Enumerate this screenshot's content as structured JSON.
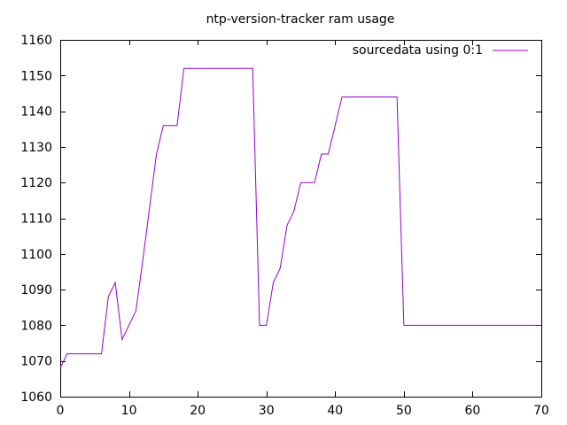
{
  "chart_data": {
    "type": "line",
    "title": "ntp-version-tracker ram usage",
    "xlabel": "",
    "ylabel": "",
    "xlim": [
      0,
      70
    ],
    "ylim": [
      1060,
      1160
    ],
    "x_ticks": [
      0,
      10,
      20,
      30,
      40,
      50,
      60,
      70
    ],
    "y_ticks": [
      1060,
      1070,
      1080,
      1090,
      1100,
      1110,
      1120,
      1130,
      1140,
      1150,
      1160
    ],
    "grid": false,
    "legend_position": "top-right",
    "series": [
      {
        "name": "sourcedata using 0:1",
        "color": "#9400d3",
        "points": [
          [
            0,
            1068
          ],
          [
            1,
            1072
          ],
          [
            2,
            1072
          ],
          [
            3,
            1072
          ],
          [
            4,
            1072
          ],
          [
            5,
            1072
          ],
          [
            6,
            1072
          ],
          [
            7,
            1088
          ],
          [
            8,
            1092
          ],
          [
            9,
            1076
          ],
          [
            10,
            1080
          ],
          [
            11,
            1084
          ],
          [
            12,
            1098
          ],
          [
            13,
            1113
          ],
          [
            14,
            1128
          ],
          [
            15,
            1136
          ],
          [
            16,
            1136
          ],
          [
            17,
            1136
          ],
          [
            18,
            1152
          ],
          [
            19,
            1152
          ],
          [
            20,
            1152
          ],
          [
            21,
            1152
          ],
          [
            22,
            1152
          ],
          [
            23,
            1152
          ],
          [
            24,
            1152
          ],
          [
            25,
            1152
          ],
          [
            26,
            1152
          ],
          [
            27,
            1152
          ],
          [
            28,
            1152
          ],
          [
            29,
            1080
          ],
          [
            30,
            1080
          ],
          [
            31,
            1092
          ],
          [
            32,
            1096
          ],
          [
            33,
            1108
          ],
          [
            34,
            1112
          ],
          [
            35,
            1120
          ],
          [
            36,
            1120
          ],
          [
            37,
            1120
          ],
          [
            38,
            1128
          ],
          [
            39,
            1128
          ],
          [
            40,
            1136
          ],
          [
            41,
            1144
          ],
          [
            42,
            1144
          ],
          [
            43,
            1144
          ],
          [
            44,
            1144
          ],
          [
            45,
            1144
          ],
          [
            46,
            1144
          ],
          [
            47,
            1144
          ],
          [
            48,
            1144
          ],
          [
            49,
            1144
          ],
          [
            50,
            1080
          ],
          [
            51,
            1080
          ],
          [
            52,
            1080
          ],
          [
            53,
            1080
          ],
          [
            54,
            1080
          ],
          [
            55,
            1080
          ],
          [
            56,
            1080
          ],
          [
            57,
            1080
          ],
          [
            58,
            1080
          ],
          [
            59,
            1080
          ],
          [
            60,
            1080
          ],
          [
            61,
            1080
          ],
          [
            62,
            1080
          ],
          [
            63,
            1080
          ],
          [
            64,
            1080
          ],
          [
            65,
            1080
          ],
          [
            66,
            1080
          ],
          [
            67,
            1080
          ],
          [
            68,
            1080
          ],
          [
            69,
            1080
          ],
          [
            70,
            1080
          ]
        ]
      }
    ]
  }
}
